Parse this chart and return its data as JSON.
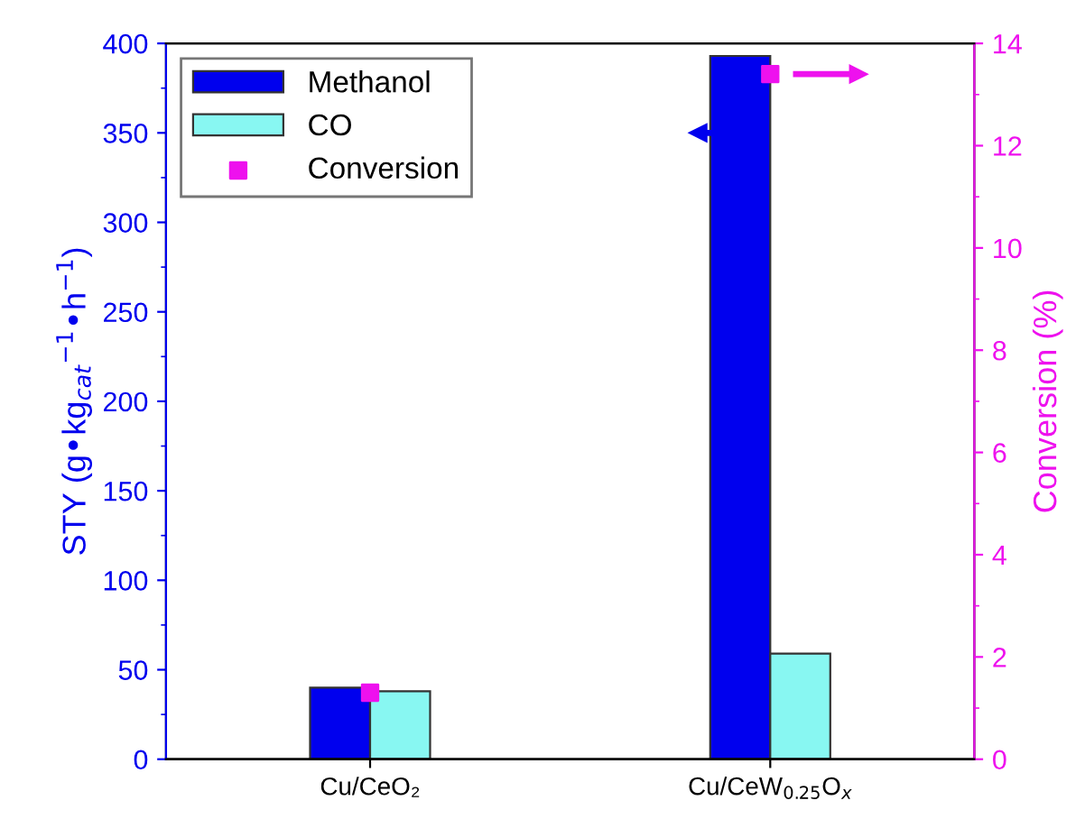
{
  "chart_data": {
    "type": "bar",
    "categories": [
      "Cu/CeO₂",
      "Cu/CeW$_{0.25}$O$_{x}$"
    ],
    "ylabel": "STY (g•kg$_{cat}$$^{−1}$•h$^{−1}$)",
    "y2label": "Conversion (%)",
    "ylim": [
      0,
      400
    ],
    "yticks": [
      0,
      50,
      100,
      150,
      200,
      250,
      300,
      350,
      400
    ],
    "y2lim": [
      0,
      14
    ],
    "y2ticks": [
      0,
      2,
      4,
      6,
      8,
      10,
      12,
      14
    ],
    "series": [
      {
        "name": "Methanol",
        "color": "#0000ee",
        "values": [
          40,
          393
        ]
      },
      {
        "name": "CO",
        "color": "#88f7f2",
        "values": [
          38,
          59
        ]
      },
      {
        "name": "Conversion",
        "color": "#ee11ee",
        "type": "scatter",
        "axis": "y2",
        "marker": "square",
        "values": [
          1.3,
          13.4
        ]
      }
    ],
    "legend": "top left",
    "grid": false
  }
}
